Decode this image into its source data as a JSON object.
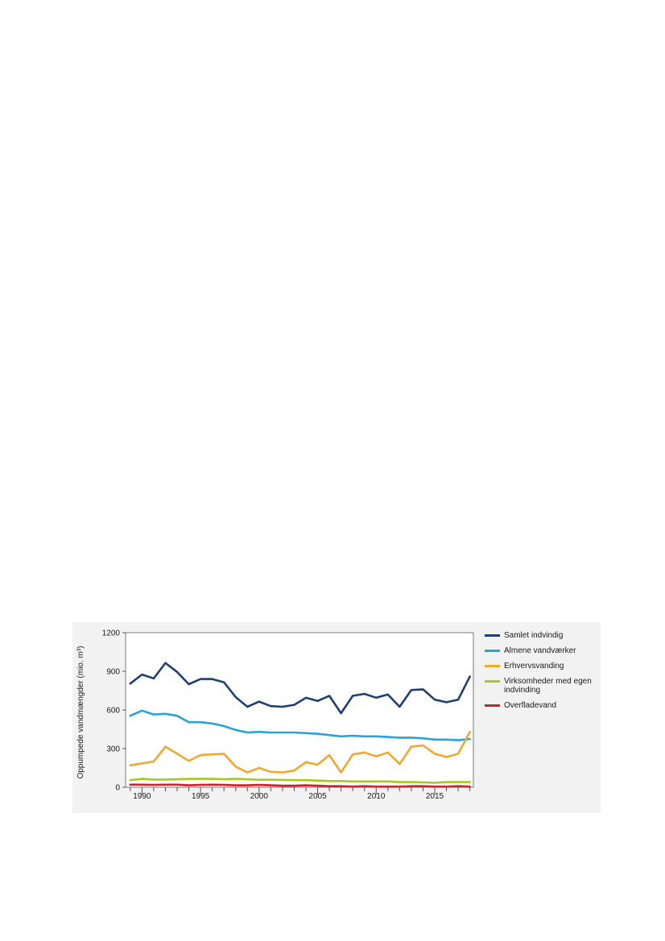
{
  "chart_data": {
    "type": "line",
    "title": "",
    "xlabel": "",
    "ylabel": "Oppumpede vandmængder (mio. m³)",
    "xlim": [
      1988.6,
      2018.3
    ],
    "ylim": [
      0,
      1200
    ],
    "xticks": [
      1990,
      1995,
      2000,
      2005,
      2010,
      2015
    ],
    "yticks": [
      0,
      300,
      600,
      900,
      1200
    ],
    "grid": false,
    "legend_position": "right",
    "x": [
      1989,
      1990,
      1991,
      1992,
      1993,
      1994,
      1995,
      1996,
      1997,
      1998,
      1999,
      2000,
      2001,
      2002,
      2003,
      2004,
      2005,
      2006,
      2007,
      2008,
      2009,
      2010,
      2011,
      2012,
      2013,
      2014,
      2015,
      2016,
      2017,
      2018
    ],
    "series": [
      {
        "name": "Samlet indvindig",
        "color": "#1f3f73",
        "values": [
          805,
          875,
          845,
          965,
          895,
          800,
          840,
          840,
          815,
          700,
          625,
          665,
          630,
          625,
          640,
          695,
          670,
          710,
          575,
          710,
          725,
          695,
          720,
          625,
          755,
          760,
          680,
          660,
          680,
          860
        ]
      },
      {
        "name": "Almene vandværker",
        "color": "#2aa3d5",
        "values": [
          555,
          595,
          565,
          570,
          555,
          505,
          505,
          495,
          475,
          445,
          425,
          430,
          425,
          425,
          425,
          420,
          415,
          405,
          395,
          400,
          395,
          395,
          390,
          385,
          385,
          380,
          370,
          370,
          365,
          375
        ]
      },
      {
        "name": "Erhvervsvanding",
        "color": "#f0a830",
        "values": [
          170,
          185,
          200,
          315,
          260,
          205,
          250,
          255,
          260,
          160,
          115,
          150,
          120,
          115,
          130,
          195,
          175,
          250,
          115,
          255,
          270,
          240,
          270,
          180,
          315,
          325,
          260,
          235,
          260,
          430
        ]
      },
      {
        "name": "Virksomheder med egen indvinding",
        "color": "#a8c820",
        "values": [
          55,
          65,
          60,
          60,
          62,
          65,
          65,
          65,
          62,
          65,
          62,
          58,
          58,
          57,
          55,
          55,
          52,
          48,
          48,
          45,
          45,
          45,
          45,
          40,
          40,
          38,
          35,
          40,
          40,
          40
        ]
      },
      {
        "name": "Overfladevand",
        "color": "#d0202a",
        "values": [
          20,
          20,
          18,
          20,
          20,
          15,
          18,
          20,
          18,
          15,
          15,
          18,
          15,
          12,
          12,
          15,
          12,
          8,
          8,
          5,
          8,
          5,
          5,
          5,
          8,
          8,
          5,
          5,
          8,
          5
        ]
      }
    ]
  }
}
